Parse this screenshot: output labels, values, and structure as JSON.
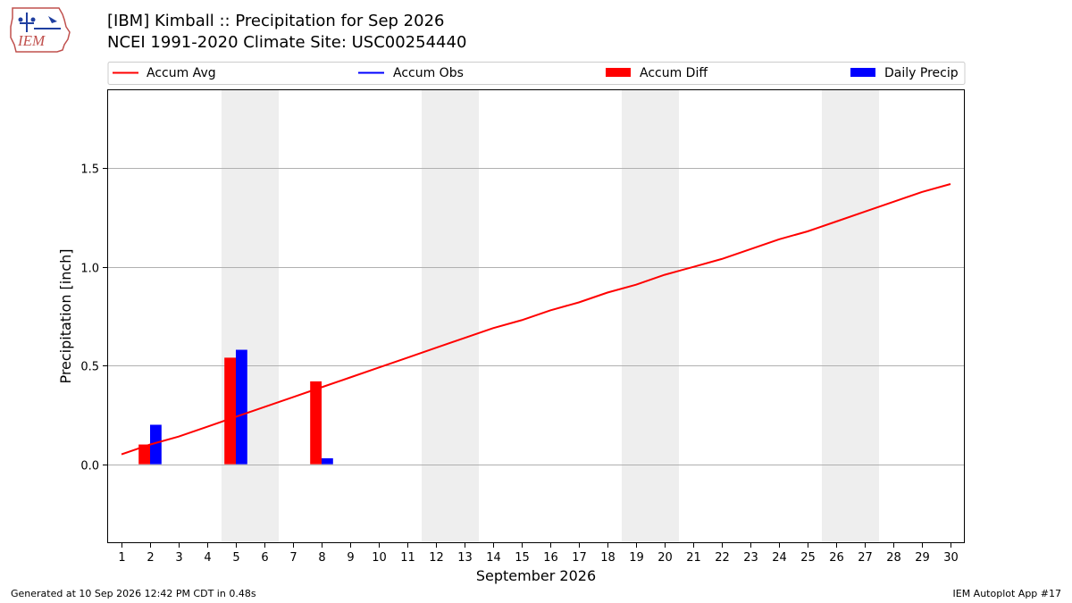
{
  "header": {
    "title_line1": "[IBM] Kimball :: Precipitation for Sep 2026",
    "title_line2": "NCEI 1991-2020 Climate Site: USC00254440"
  },
  "logo": {
    "text": "IEM"
  },
  "footer": {
    "generated": "Generated at 10 Sep 2026 12:42 PM CDT in 0.48s",
    "app": "IEM Autoplot App #17"
  },
  "colors": {
    "accum_avg": "#ff0000",
    "accum_obs": "#0000ff",
    "accum_diff": "#ff0000",
    "daily_precip": "#0000ff",
    "weekend_shade": "#eeeeee",
    "grid": "#b0b0b0"
  },
  "chart_data": {
    "type": "bar",
    "title": "[IBM] Kimball :: Precipitation for Sep 2026",
    "subtitle": "NCEI 1991-2020 Climate Site: USC00254440",
    "xlabel": "September 2026",
    "ylabel": "Precipitation [inch]",
    "xlim": [
      0.5,
      30.5
    ],
    "ylim": [
      -0.4,
      1.9
    ],
    "x_ticks": [
      1,
      2,
      3,
      4,
      5,
      6,
      7,
      8,
      9,
      10,
      11,
      12,
      13,
      14,
      15,
      16,
      17,
      18,
      19,
      20,
      21,
      22,
      23,
      24,
      25,
      26,
      27,
      28,
      29,
      30
    ],
    "y_ticks": [
      0.0,
      0.5,
      1.0,
      1.5
    ],
    "y_tick_labels": [
      "0.0",
      "0.5",
      "1.0",
      "1.5"
    ],
    "grid": "horizontal",
    "legend_position": "top",
    "legend": [
      "Accum Avg",
      "Accum Obs",
      "Accum Diff",
      "Daily Precip"
    ],
    "weekend_spans": [
      [
        4.5,
        6.5
      ],
      [
        11.5,
        13.5
      ],
      [
        18.5,
        20.5
      ],
      [
        25.5,
        27.5
      ]
    ],
    "series": [
      {
        "name": "Accum Avg",
        "kind": "line",
        "x": [
          1,
          2,
          3,
          4,
          5,
          6,
          7,
          8,
          9,
          10,
          11,
          12,
          13,
          14,
          15,
          16,
          17,
          18,
          19,
          20,
          21,
          22,
          23,
          24,
          25,
          26,
          27,
          28,
          29,
          30
        ],
        "values": [
          0.05,
          0.1,
          0.14,
          0.19,
          0.24,
          0.29,
          0.34,
          0.39,
          0.44,
          0.49,
          0.54,
          0.59,
          0.64,
          0.69,
          0.73,
          0.78,
          0.82,
          0.87,
          0.91,
          0.96,
          1.0,
          1.04,
          1.09,
          1.14,
          1.18,
          1.23,
          1.28,
          1.33,
          1.38,
          1.42
        ]
      },
      {
        "name": "Accum Obs",
        "kind": "line",
        "x": [],
        "values": []
      },
      {
        "name": "Accum Diff",
        "kind": "bar",
        "x": [
          2,
          5,
          8
        ],
        "values": [
          0.1,
          0.54,
          0.42
        ]
      },
      {
        "name": "Daily Precip",
        "kind": "bar",
        "x": [
          2,
          5,
          8
        ],
        "values": [
          0.2,
          0.58,
          0.03
        ]
      }
    ]
  }
}
